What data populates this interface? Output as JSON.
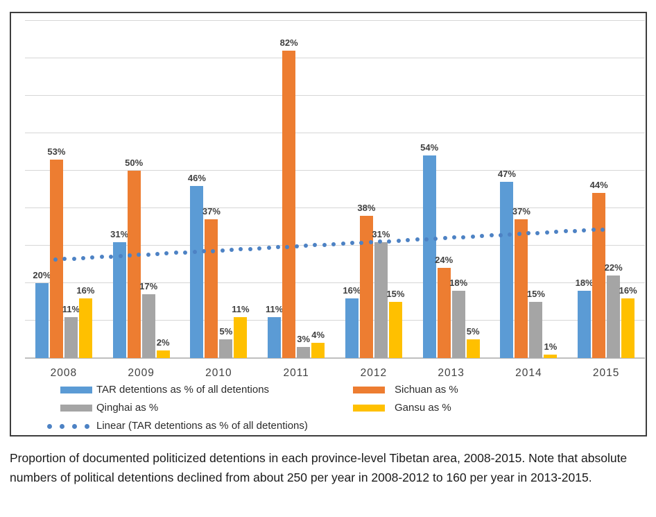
{
  "chart_data": {
    "type": "bar",
    "title": "",
    "xlabel": "",
    "ylabel": "",
    "categories": [
      "2008",
      "2009",
      "2010",
      "2011",
      "2012",
      "2013",
      "2014",
      "2015"
    ],
    "series": [
      {
        "name": "TAR detentions as % of all detentions",
        "color": "#5B9BD5",
        "values": [
          20,
          31,
          46,
          11,
          16,
          54,
          47,
          18
        ]
      },
      {
        "name": "Sichuan as %",
        "color": "#ED7D31",
        "values": [
          53,
          50,
          37,
          82,
          38,
          24,
          37,
          44
        ]
      },
      {
        "name": "Qinghai as %",
        "color": "#A5A5A5",
        "values": [
          11,
          17,
          5,
          3,
          31,
          18,
          15,
          22
        ]
      },
      {
        "name": "Gansu as %",
        "color": "#FFC000",
        "values": [
          16,
          2,
          11,
          4,
          15,
          5,
          1,
          16
        ]
      }
    ],
    "trendline": {
      "name": "Linear (TAR detentions as % of all detentions)",
      "color": "#4D82C4",
      "style": "dotted",
      "start_pct": 26.4,
      "end_pct": 34.4
    },
    "data_label_suffix": "%",
    "ylim": [
      0,
      90
    ],
    "gridline_step": 10,
    "grid": true,
    "legend_position": "bottom"
  },
  "caption": {
    "text": "Proportion of documented politicized detentions in each province-level Tibetan area, 2008-2015. Note that absolute numbers of political detentions declined from about 250 per year in 2008-2012 to 160 per year in 2013-2015."
  }
}
